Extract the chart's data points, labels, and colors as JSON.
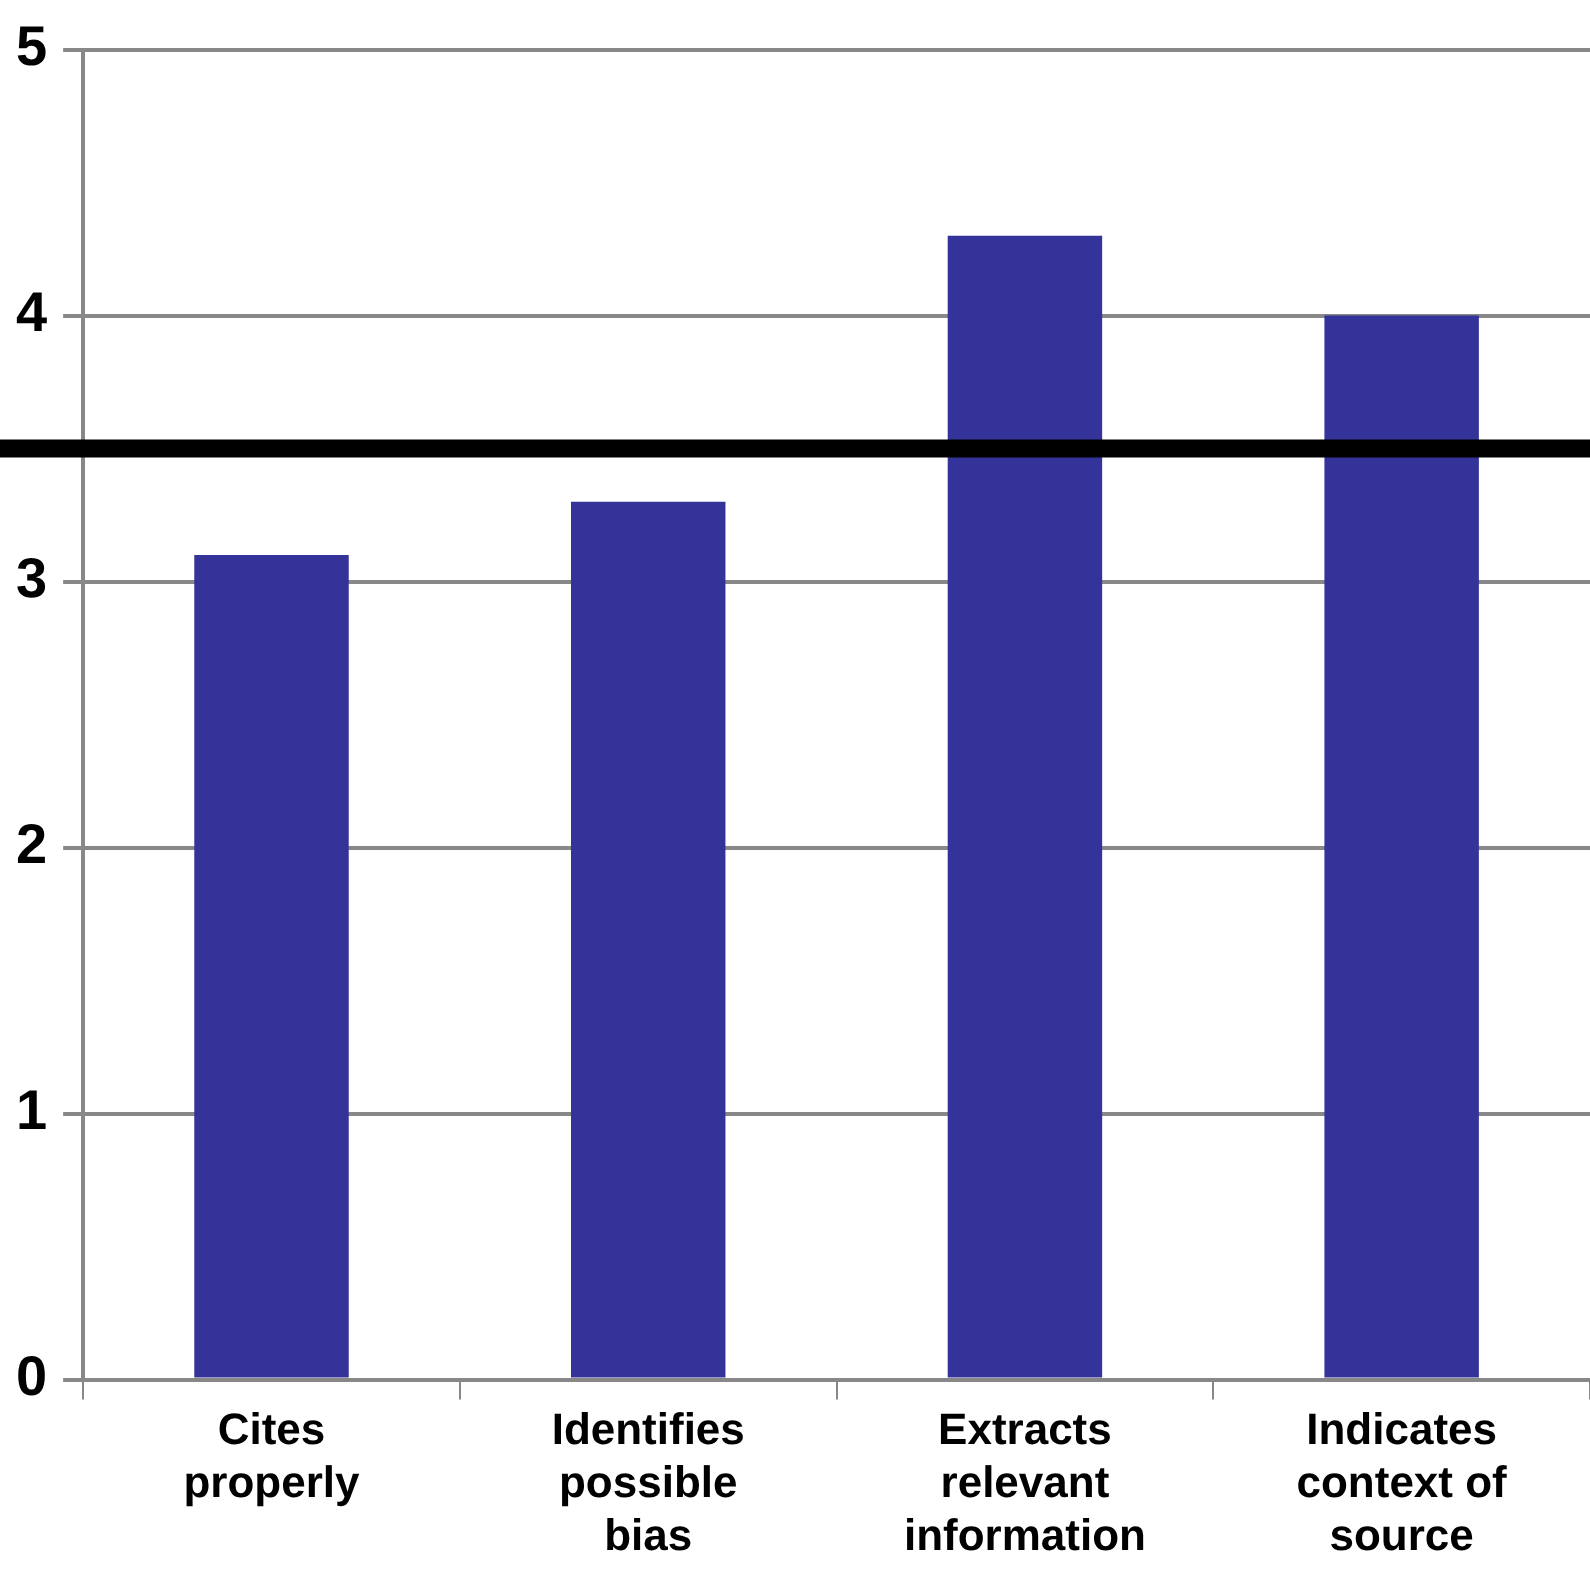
{
  "chart_data": {
    "type": "bar",
    "categories": [
      "Cites properly",
      "Identifies possible bias",
      "Extracts relevant information",
      "Indicates context of source"
    ],
    "values": [
      3.1,
      3.3,
      4.3,
      4.0
    ],
    "color": "#333399",
    "ylim": [
      0,
      5
    ],
    "yticks": [
      0,
      1,
      2,
      3,
      4,
      5
    ],
    "grid": "y",
    "ref_lines": [
      {
        "axis": "y",
        "value": 3.5,
        "color": "#000000"
      }
    ]
  }
}
